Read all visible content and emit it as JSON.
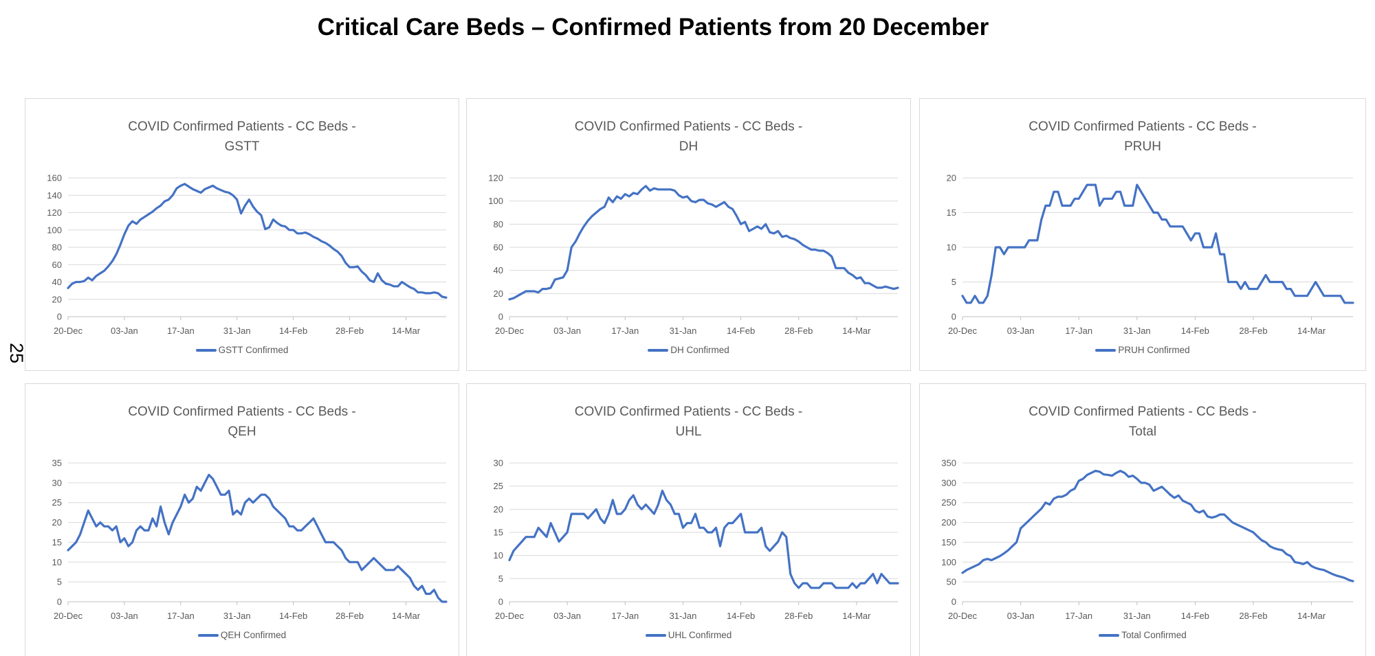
{
  "page": {
    "title": "Critical Care Beds – Confirmed Patients from 20 December",
    "page_number": "25"
  },
  "chart_data": [
    {
      "type": "line",
      "title_line1": "COVID Confirmed Patients - CC Beds -",
      "title_line2": "GSTT",
      "legend": "GSTT Confirmed",
      "line_color": "#4472c4",
      "grid_color": "#d9d9d9",
      "y_min": 0,
      "y_max": 160,
      "y_step": 20,
      "y_tick_labels": [
        "0",
        "20",
        "40",
        "60",
        "80",
        "100",
        "120",
        "140",
        "160"
      ],
      "x_tick_labels": [
        "20-Dec",
        "03-Jan",
        "17-Jan",
        "31-Jan",
        "14-Feb",
        "28-Feb",
        "14-Mar"
      ],
      "x_tick_indices": [
        0,
        14,
        28,
        42,
        56,
        70,
        84
      ],
      "values": [
        33,
        38,
        40,
        40,
        41,
        45,
        42,
        47,
        50,
        53,
        58,
        64,
        72,
        83,
        95,
        105,
        110,
        107,
        112,
        115,
        118,
        121,
        125,
        128,
        133,
        135,
        140,
        148,
        151,
        153,
        150,
        147,
        145,
        143,
        147,
        149,
        151,
        148,
        146,
        144,
        143,
        140,
        135,
        119,
        128,
        135,
        127,
        121,
        117,
        101,
        103,
        112,
        108,
        105,
        104,
        100,
        100,
        96,
        96,
        97,
        95,
        92,
        90,
        87,
        85,
        82,
        78,
        75,
        70,
        62,
        57,
        57,
        58,
        52,
        48,
        42,
        40,
        50,
        42,
        38,
        37,
        35,
        35,
        40,
        37,
        34,
        32,
        28,
        28,
        27,
        27,
        28,
        27,
        23,
        22
      ]
    },
    {
      "type": "line",
      "title_line1": "COVID Confirmed Patients - CC Beds -",
      "title_line2": "DH",
      "legend": "DH Confirmed",
      "line_color": "#4472c4",
      "grid_color": "#d9d9d9",
      "y_min": 0,
      "y_max": 120,
      "y_step": 20,
      "y_tick_labels": [
        "0",
        "20",
        "40",
        "60",
        "80",
        "100",
        "120"
      ],
      "x_tick_labels": [
        "20-Dec",
        "03-Jan",
        "17-Jan",
        "31-Jan",
        "14-Feb",
        "28-Feb",
        "14-Mar"
      ],
      "x_tick_indices": [
        0,
        14,
        28,
        42,
        56,
        70,
        84
      ],
      "values": [
        15,
        16,
        18,
        20,
        22,
        22,
        22,
        21,
        24,
        24,
        25,
        32,
        33,
        34,
        40,
        60,
        65,
        72,
        78,
        83,
        87,
        90,
        93,
        95,
        103,
        99,
        104,
        102,
        106,
        104,
        107,
        106,
        110,
        113,
        109,
        111,
        110,
        110,
        110,
        110,
        109,
        105,
        103,
        104,
        100,
        99,
        101,
        101,
        98,
        97,
        95,
        97,
        99,
        95,
        93,
        87,
        80,
        82,
        74,
        76,
        78,
        76,
        80,
        73,
        72,
        74,
        69,
        70,
        68,
        67,
        65,
        62,
        60,
        58,
        58,
        57,
        57,
        55,
        52,
        42,
        42,
        42,
        38,
        36,
        33,
        34,
        29,
        29,
        27,
        25,
        25,
        26,
        25,
        24,
        25
      ]
    },
    {
      "type": "line",
      "title_line1": "COVID Confirmed Patients - CC Beds -",
      "title_line2": "PRUH",
      "legend": "PRUH Confirmed",
      "line_color": "#4472c4",
      "grid_color": "#d9d9d9",
      "y_min": 0,
      "y_max": 20,
      "y_step": 5,
      "y_tick_labels": [
        "0",
        "5",
        "10",
        "15",
        "20"
      ],
      "x_tick_labels": [
        "20-Dec",
        "03-Jan",
        "17-Jan",
        "31-Jan",
        "14-Feb",
        "28-Feb",
        "14-Mar"
      ],
      "x_tick_indices": [
        0,
        14,
        28,
        42,
        56,
        70,
        84
      ],
      "values": [
        3,
        2,
        2,
        3,
        2,
        2,
        3,
        6,
        10,
        10,
        9,
        10,
        10,
        10,
        10,
        10,
        11,
        11,
        11,
        14,
        16,
        16,
        18,
        18,
        16,
        16,
        16,
        17,
        17,
        18,
        19,
        19,
        19,
        16,
        17,
        17,
        17,
        18,
        18,
        16,
        16,
        16,
        19,
        18,
        17,
        16,
        15,
        15,
        14,
        14,
        13,
        13,
        13,
        13,
        12,
        11,
        12,
        12,
        10,
        10,
        10,
        12,
        9,
        9,
        5,
        5,
        5,
        4,
        5,
        4,
        4,
        4,
        5,
        6,
        5,
        5,
        5,
        5,
        4,
        4,
        3,
        3,
        3,
        3,
        4,
        5,
        4,
        3,
        3,
        3,
        3,
        3,
        2,
        2,
        2
      ]
    },
    {
      "type": "line",
      "title_line1": "COVID Confirmed Patients - CC Beds -",
      "title_line2": "QEH",
      "legend": "QEH Confirmed",
      "line_color": "#4472c4",
      "grid_color": "#d9d9d9",
      "y_min": 0,
      "y_max": 35,
      "y_step": 5,
      "y_tick_labels": [
        "0",
        "5",
        "10",
        "15",
        "20",
        "25",
        "30",
        "35"
      ],
      "x_tick_labels": [
        "20-Dec",
        "03-Jan",
        "17-Jan",
        "31-Jan",
        "14-Feb",
        "28-Feb",
        "14-Mar"
      ],
      "x_tick_indices": [
        0,
        14,
        28,
        42,
        56,
        70,
        84
      ],
      "values": [
        13,
        14,
        15,
        17,
        20,
        23,
        21,
        19,
        20,
        19,
        19,
        18,
        19,
        15,
        16,
        14,
        15,
        18,
        19,
        18,
        18,
        21,
        19,
        24,
        20,
        17,
        20,
        22,
        24,
        27,
        25,
        26,
        29,
        28,
        30,
        32,
        31,
        29,
        27,
        27,
        28,
        22,
        23,
        22,
        25,
        26,
        25,
        26,
        27,
        27,
        26,
        24,
        23,
        22,
        21,
        19,
        19,
        18,
        18,
        19,
        20,
        21,
        19,
        17,
        15,
        15,
        15,
        14,
        13,
        11,
        10,
        10,
        10,
        8,
        9,
        10,
        11,
        10,
        9,
        8,
        8,
        8,
        9,
        8,
        7,
        6,
        4,
        3,
        4,
        2,
        2,
        3,
        1,
        0,
        0
      ]
    },
    {
      "type": "line",
      "title_line1": "COVID Confirmed Patients - CC Beds -",
      "title_line2": "UHL",
      "legend": "UHL Confirmed",
      "line_color": "#4472c4",
      "grid_color": "#d9d9d9",
      "y_min": 0,
      "y_max": 30,
      "y_step": 5,
      "y_tick_labels": [
        "0",
        "5",
        "10",
        "15",
        "20",
        "25",
        "30"
      ],
      "x_tick_labels": [
        "20-Dec",
        "03-Jan",
        "17-Jan",
        "31-Jan",
        "14-Feb",
        "28-Feb",
        "14-Mar"
      ],
      "x_tick_indices": [
        0,
        14,
        28,
        42,
        56,
        70,
        84
      ],
      "values": [
        9,
        11,
        12,
        13,
        14,
        14,
        14,
        16,
        15,
        14,
        17,
        15,
        13,
        14,
        15,
        19,
        19,
        19,
        19,
        18,
        19,
        20,
        18,
        17,
        19,
        22,
        19,
        19,
        20,
        22,
        23,
        21,
        20,
        21,
        20,
        19,
        21,
        24,
        22,
        21,
        19,
        19,
        16,
        17,
        17,
        19,
        16,
        16,
        15,
        15,
        16,
        12,
        16,
        17,
        17,
        18,
        19,
        15,
        15,
        15,
        15,
        16,
        12,
        11,
        12,
        13,
        15,
        14,
        6,
        4,
        3,
        4,
        4,
        3,
        3,
        3,
        4,
        4,
        4,
        3,
        3,
        3,
        3,
        4,
        3,
        4,
        4,
        5,
        6,
        4,
        6,
        5,
        4,
        4,
        4
      ]
    },
    {
      "type": "line",
      "title_line1": "COVID Confirmed Patients - CC Beds -",
      "title_line2": "Total",
      "legend": "Total Confirmed",
      "line_color": "#4472c4",
      "grid_color": "#d9d9d9",
      "y_min": 0,
      "y_max": 350,
      "y_step": 50,
      "y_tick_labels": [
        "0",
        "50",
        "100",
        "150",
        "200",
        "250",
        "300",
        "350"
      ],
      "x_tick_labels": [
        "20-Dec",
        "03-Jan",
        "17-Jan",
        "31-Jan",
        "14-Feb",
        "28-Feb",
        "14-Mar"
      ],
      "x_tick_indices": [
        0,
        14,
        28,
        42,
        56,
        70,
        84
      ],
      "values": [
        73,
        80,
        85,
        90,
        95,
        105,
        108,
        105,
        110,
        115,
        122,
        130,
        140,
        150,
        185,
        195,
        205,
        215,
        225,
        235,
        250,
        245,
        260,
        265,
        265,
        270,
        280,
        285,
        305,
        310,
        320,
        325,
        330,
        328,
        321,
        320,
        318,
        325,
        330,
        325,
        315,
        318,
        310,
        300,
        300,
        295,
        280,
        285,
        290,
        280,
        270,
        262,
        268,
        255,
        250,
        245,
        230,
        225,
        230,
        215,
        212,
        215,
        220,
        220,
        210,
        200,
        195,
        190,
        185,
        180,
        175,
        165,
        155,
        150,
        140,
        135,
        132,
        130,
        120,
        115,
        100,
        98,
        95,
        100,
        90,
        85,
        82,
        80,
        75,
        70,
        66,
        63,
        60,
        55,
        52
      ]
    }
  ]
}
